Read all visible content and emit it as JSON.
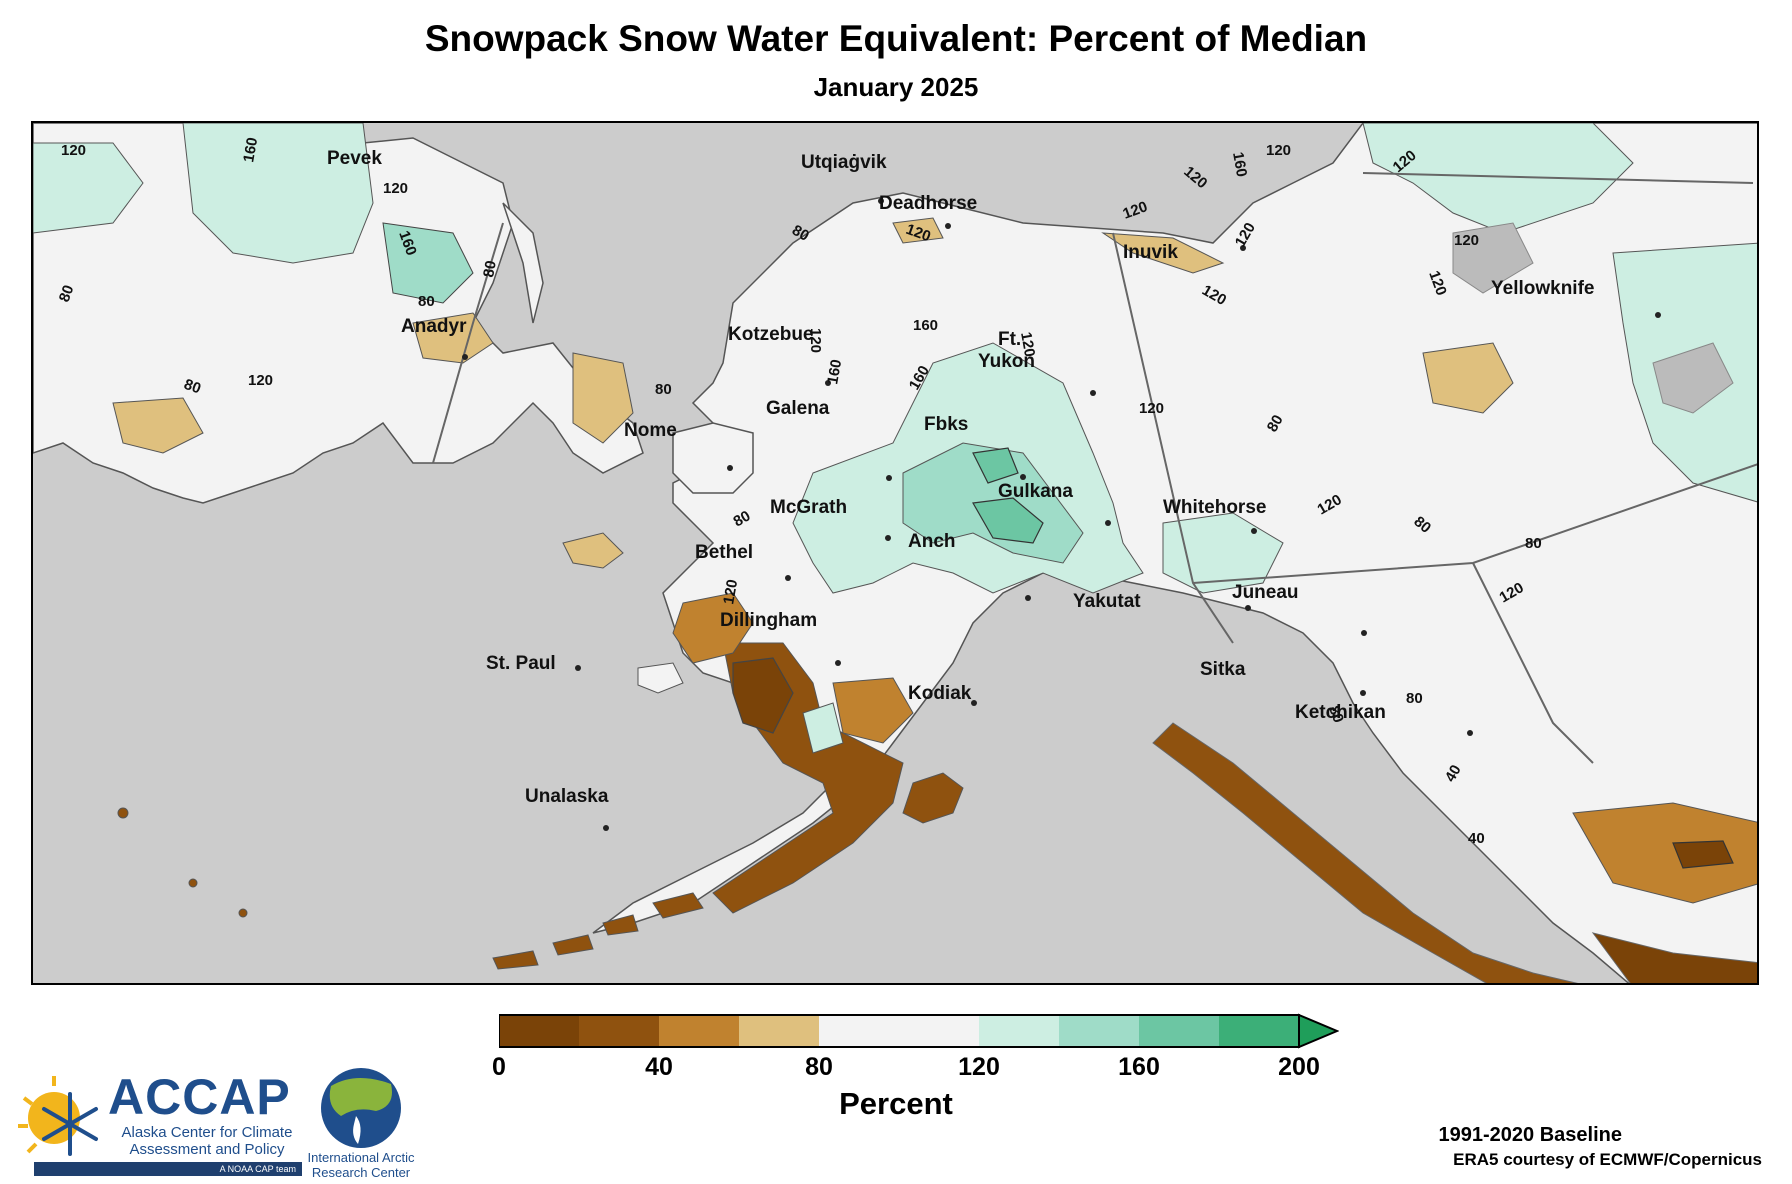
{
  "header": {
    "title": "Snowpack Snow Water Equivalent: Percent of Median",
    "subtitle": "January 2025"
  },
  "colors": {
    "ocean": "#cccccc",
    "land": "#f2f2f2",
    "bins": [
      "#7a4308",
      "#8f520f",
      "#c0822f",
      "#dfc07e",
      "#f3f3f3",
      "#f3f3f3",
      "#cdeee2",
      "#9fdcc8",
      "#6cc6a3",
      "#3caf78"
    ],
    "arrow": "#1f9e5a"
  },
  "legend": {
    "title": "Percent",
    "ticks": [
      "0",
      "40",
      "80",
      "120",
      "160",
      "200"
    ]
  },
  "places": [
    {
      "name": "Pevek"
    },
    {
      "name": "Utqiaġvik"
    },
    {
      "name": "Deadhorse"
    },
    {
      "name": "Inuvik"
    },
    {
      "name": "Yellowknife"
    },
    {
      "name": "Anadyr"
    },
    {
      "name": "Kotzebue"
    },
    {
      "name": "Ft."
    },
    {
      "name": "Yukon"
    },
    {
      "name": "Nome"
    },
    {
      "name": "Galena"
    },
    {
      "name": "Fbks"
    },
    {
      "name": "Gulkana"
    },
    {
      "name": "Whitehorse"
    },
    {
      "name": "McGrath"
    },
    {
      "name": "Bethel"
    },
    {
      "name": "Anch"
    },
    {
      "name": "Yakutat"
    },
    {
      "name": "Juneau"
    },
    {
      "name": "Dillingham"
    },
    {
      "name": "Sitka"
    },
    {
      "name": "Kodiak"
    },
    {
      "name": "St. Paul"
    },
    {
      "name": "Ketchikan"
    },
    {
      "name": "Unalaska"
    }
  ],
  "contour_labels": [
    "120",
    "160",
    "120",
    "160",
    "80",
    "80",
    "80",
    "80",
    "80",
    "120",
    "120",
    "160",
    "120",
    "160",
    "160",
    "120",
    "80",
    "120",
    "120",
    "120",
    "160",
    "120",
    "120",
    "120",
    "120",
    "120",
    "80",
    "120",
    "120",
    "80",
    "80",
    "120",
    "80",
    "40",
    "40",
    "80",
    "120",
    "80"
  ],
  "footer": {
    "baseline": "1991-2020 Baseline",
    "credit": "ERA5 courtesy of ECMWF/Copernicus"
  },
  "logos": {
    "accap_name": "ACCAP",
    "accap_full": "Alaska Center for Climate Assessment and Policy",
    "accap_tag": "A NOAA CAP team",
    "iarc_full": "International Arctic Research Center"
  }
}
